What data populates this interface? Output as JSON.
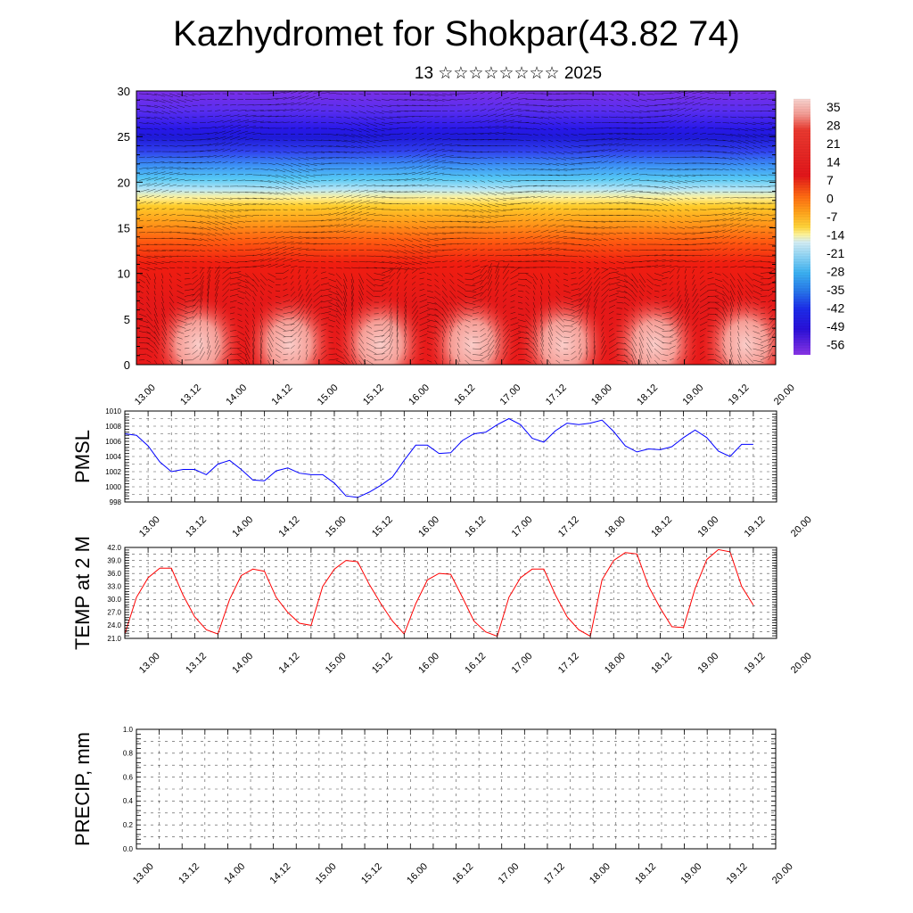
{
  "title": "Kazhydromet for Shokpar(43.82 74)",
  "subtitle": "13 ☆☆☆☆☆☆☆☆ 2025",
  "chart_data": [
    {
      "type": "heatmap",
      "description_x": "time",
      "xlim": [
        0,
        168
      ],
      "ylim": [
        0,
        30
      ],
      "x_tick_values": [
        0,
        12,
        24,
        36,
        48,
        60,
        72,
        84,
        96,
        108,
        120,
        132,
        144,
        156,
        168
      ],
      "x_tick_labels": [
        "13.00",
        "13.12",
        "14.00",
        "14.12",
        "15.00",
        "15.12",
        "16.00",
        "16.12",
        "17.00",
        "17.12",
        "18.00",
        "18.12",
        "19.00",
        "19.12",
        "20.00"
      ],
      "y_tick_labels": [
        "0",
        "5",
        "10",
        "15",
        "20",
        "25",
        "30"
      ],
      "colorbar_labels": [
        "35",
        "28",
        "21",
        "14",
        "7",
        "0",
        "-7",
        "-14",
        "-21",
        "-28",
        "-35",
        "-42",
        "-49",
        "-56"
      ],
      "colorbar_range": [
        -60,
        38
      ],
      "overlay": "wind vectors"
    },
    {
      "type": "line",
      "ylabel": "PMSL",
      "xlim": [
        0,
        168
      ],
      "ylim": [
        998,
        1010
      ],
      "y_tick_labels": [
        "1010",
        "1008",
        "1006",
        "1004",
        "1002",
        "1000",
        "998"
      ],
      "x_tick_labels": [
        "13.00",
        "13.12",
        "14.00",
        "14.12",
        "15.00",
        "15.12",
        "16.00",
        "16.12",
        "17.00",
        "17.12",
        "18.00",
        "18.12",
        "19.00",
        "19.12",
        "20.00"
      ],
      "color": "#0000ff",
      "x": [
        0,
        3,
        6,
        9,
        12,
        15,
        18,
        21,
        24,
        27,
        30,
        33,
        36,
        39,
        42,
        45,
        48,
        51,
        54,
        57,
        60,
        63,
        66,
        69,
        72,
        75,
        78,
        81,
        84,
        87,
        90,
        93,
        96,
        99,
        102,
        105,
        108,
        111,
        114,
        117,
        120,
        123,
        126,
        129,
        132,
        135,
        138,
        141,
        144,
        147,
        150,
        153,
        156,
        159,
        162
      ],
      "y": [
        1007.0,
        1006.8,
        1005.4,
        1003.3,
        1002.0,
        1002.3,
        1002.3,
        1001.6,
        1003.0,
        1003.5,
        1002.3,
        1000.9,
        1000.8,
        1002.1,
        1002.5,
        1001.8,
        1001.6,
        1001.6,
        1000.5,
        998.8,
        998.6,
        999.3,
        1000.2,
        1001.3,
        1003.5,
        1005.5,
        1005.5,
        1004.4,
        1004.5,
        1006.1,
        1007.0,
        1007.2,
        1008.2,
        1009.0,
        1008.2,
        1006.4,
        1005.9,
        1007.4,
        1008.4,
        1008.2,
        1008.4,
        1008.8,
        1007.3,
        1005.4,
        1004.6,
        1005.0,
        1004.9,
        1005.3,
        1006.5,
        1007.5,
        1006.5,
        1004.7,
        1004.0,
        1005.6,
        1005.6
      ]
    },
    {
      "type": "line",
      "ylabel": "TEMP at 2 M",
      "xlim": [
        0,
        168
      ],
      "ylim": [
        21,
        42
      ],
      "y_tick_labels": [
        "42.0",
        "39.0",
        "36.0",
        "33.0",
        "30.0",
        "27.0",
        "24.0",
        "21.0"
      ],
      "x_tick_labels": [
        "13.00",
        "13.12",
        "14.00",
        "14.12",
        "15.00",
        "15.12",
        "16.00",
        "16.12",
        "17.00",
        "17.12",
        "18.00",
        "18.12",
        "19.00",
        "19.12",
        "20.00"
      ],
      "color": "#ff0000",
      "x": [
        0,
        3,
        6,
        9,
        12,
        15,
        18,
        21,
        24,
        27,
        30,
        33,
        36,
        39,
        42,
        45,
        48,
        51,
        54,
        57,
        60,
        63,
        66,
        69,
        72,
        75,
        78,
        81,
        84,
        87,
        90,
        93,
        96,
        99,
        102,
        105,
        108,
        111,
        114,
        117,
        120,
        123,
        126,
        129,
        132,
        135,
        138,
        141,
        144,
        147,
        150,
        153,
        156,
        159,
        162
      ],
      "y": [
        22.0,
        30.5,
        35.0,
        37.2,
        37.2,
        31.0,
        26.0,
        23.0,
        22.0,
        30.0,
        35.5,
        37.0,
        36.5,
        30.5,
        27.0,
        24.5,
        24.0,
        33.0,
        37.0,
        39.0,
        38.7,
        33.5,
        29.0,
        25.0,
        22.0,
        29.0,
        34.5,
        36.0,
        35.8,
        30.5,
        25.0,
        22.5,
        21.5,
        30.5,
        35.0,
        37.0,
        37.0,
        31.0,
        26.0,
        23.0,
        21.5,
        34.5,
        39.0,
        40.8,
        40.5,
        33.0,
        28.0,
        23.7,
        23.5,
        32.5,
        39.2,
        41.5,
        41.0,
        33.0,
        28.7
      ]
    },
    {
      "type": "line",
      "ylabel": "PRECIP, mm",
      "xlim": [
        0,
        168
      ],
      "ylim": [
        0,
        1
      ],
      "y_tick_labels": [
        "1.0",
        "0.8",
        "0.6",
        "0.4",
        "0.2",
        "0.0"
      ],
      "x_tick_labels": [
        "13.00",
        "13.12",
        "14.00",
        "14.12",
        "15.00",
        "15.12",
        "16.00",
        "16.12",
        "17.00",
        "17.12",
        "18.00",
        "18.12",
        "19.00",
        "19.12",
        "20.00"
      ],
      "color": "#006400",
      "x": [
        0,
        168
      ],
      "y": [
        0,
        0
      ]
    }
  ]
}
